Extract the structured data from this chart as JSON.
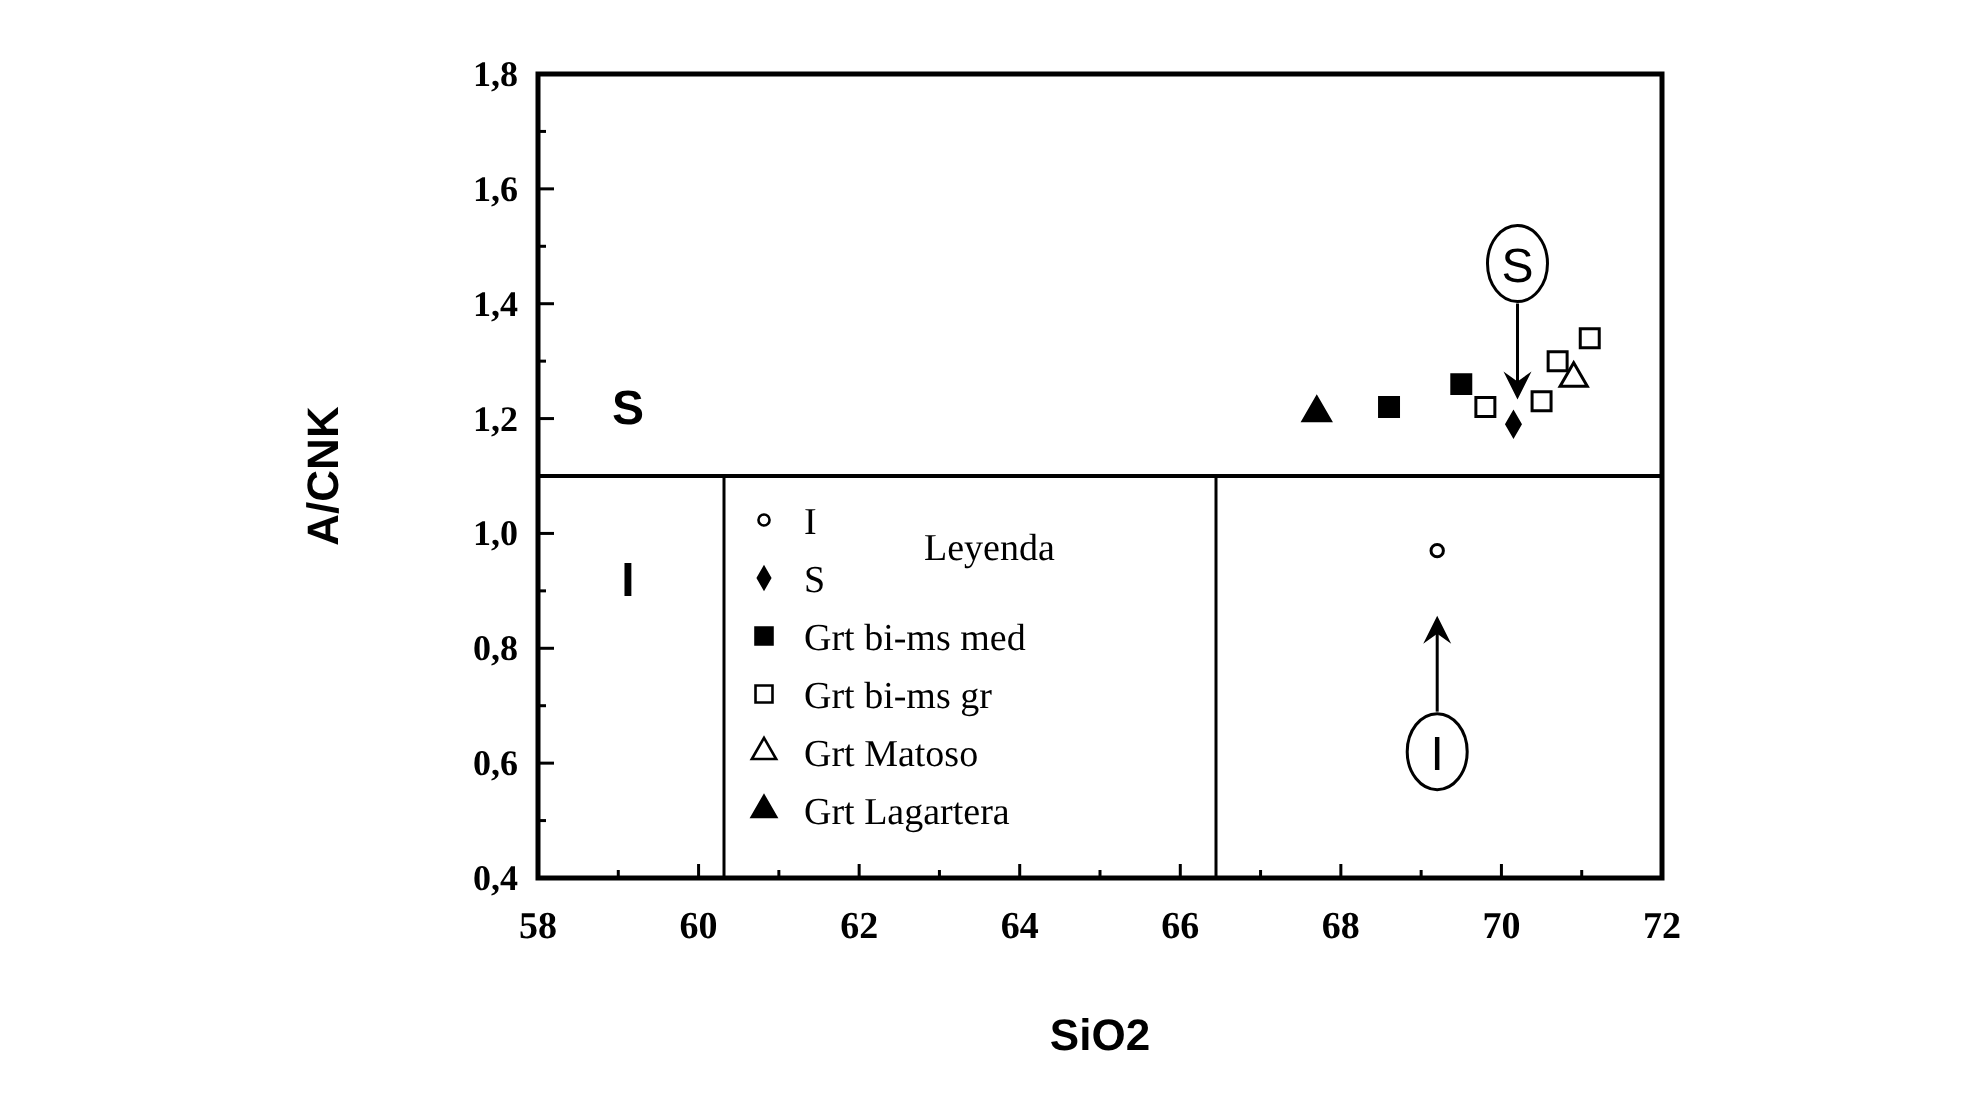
{
  "chart_data": {
    "type": "scatter",
    "xlabel": "SiO2",
    "ylabel": "A/CNK",
    "legend_title": "Leyenda",
    "legend": "bottom",
    "xlim": [
      58,
      72
    ],
    "ylim": [
      0.4,
      1.8
    ],
    "xticks": [
      58,
      {
        "value": 59,
        "label": null
      },
      60,
      {
        "value": 61,
        "label": null
      },
      62,
      {
        "value": 63,
        "label": null
      },
      64,
      {
        "value": 65,
        "label": null
      },
      66,
      {
        "value": 67,
        "label": null
      },
      68,
      {
        "value": 69,
        "label": null
      },
      70,
      {
        "value": 71,
        "label": null
      },
      72
    ],
    "yticks": [
      {
        "value": 0.4,
        "label": "0,4"
      },
      {
        "value": 0.5,
        "label": null
      },
      {
        "value": 0.6,
        "label": "0,6"
      },
      {
        "value": 0.7,
        "label": null
      },
      {
        "value": 0.8,
        "label": "0,8"
      },
      {
        "value": 0.9,
        "label": null
      },
      {
        "value": 1.0,
        "label": "1,0"
      },
      {
        "value": 1.1,
        "label": null
      },
      {
        "value": 1.2,
        "label": "1,2"
      },
      {
        "value": 1.3,
        "label": null
      },
      {
        "value": 1.4,
        "label": "1,4"
      },
      {
        "value": 1.5,
        "label": null
      },
      {
        "value": 1.6,
        "label": "1,6"
      },
      {
        "value": 1.7,
        "label": null
      },
      {
        "value": 1.8,
        "label": "1,8"
      }
    ],
    "grid": false,
    "ref_lines": [
      {
        "axis": "y",
        "value": 1.1,
        "color": "#000000"
      }
    ],
    "annotations": [
      "S",
      "I",
      {
        "text": "S",
        "x": 70.2,
        "y": 1.47
      },
      {
        "text": "I",
        "x": 69.2,
        "y": 0.62
      }
    ],
    "series": [
      {
        "name": "I",
        "color": "#ffffff",
        "marker": "circle",
        "x": [
          69.2
        ],
        "values": [
          0.97
        ]
      },
      {
        "name": "S",
        "color": "#000000",
        "marker": "diamond",
        "x": [
          70.15
        ],
        "values": [
          1.19
        ]
      },
      {
        "name": "Grt bi-ms med",
        "color": "#000000",
        "marker": "square",
        "x": [
          68.6,
          69.5
        ],
        "values": [
          1.22,
          1.26
        ]
      },
      {
        "name": "Grt bi-ms gr",
        "color": "#ffffff",
        "marker": "square",
        "x": [
          69.8,
          70.5,
          70.7,
          71.1
        ],
        "values": [
          1.22,
          1.23,
          1.3,
          1.34
        ]
      },
      {
        "name": "Grt Matoso",
        "color": "#ffffff",
        "marker": "triangle",
        "x": [
          70.9
        ],
        "values": [
          1.27
        ]
      },
      {
        "name": "Grt Lagartera",
        "color": "#000000",
        "marker": "triangle",
        "x": [
          67.7
        ],
        "values": [
          1.21
        ]
      }
    ]
  }
}
